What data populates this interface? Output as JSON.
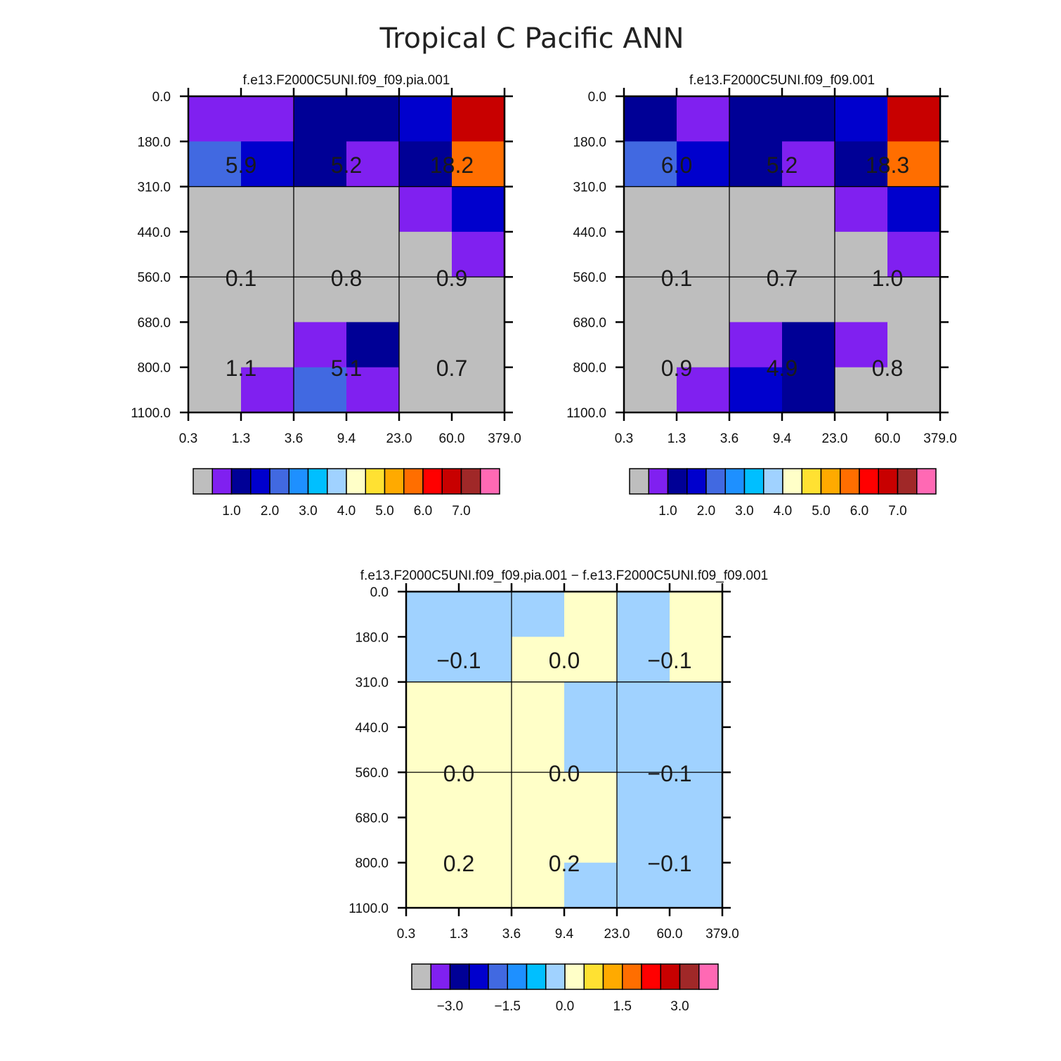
{
  "title": "Tropical C Pacific ANN",
  "color_table": {
    "colors": [
      "#bebebe",
      "#8020f0",
      "#000096",
      "#0000cd",
      "#4169e1",
      "#1e90ff",
      "#00bfff",
      "#a0d2ff",
      "#ffffc8",
      "#ffe132",
      "#ffaa00",
      "#ff6e00",
      "#ff0000",
      "#c80000",
      "#a02828",
      "#ff69b4"
    ]
  },
  "chart_data": [
    {
      "type": "heatmap",
      "id": "p1",
      "title": "f.e13.F2000C5UNI.f09_f09.pia.001",
      "x_ticks": [
        "0.3",
        "1.3",
        "3.6",
        "9.4",
        "23.0",
        "60.0",
        "379.0"
      ],
      "y_ticks": [
        "0.0",
        "180.0",
        "310.0",
        "440.0",
        "560.0",
        "680.0",
        "800.0",
        "1100.0"
      ],
      "cells": [
        [
          1,
          1,
          2,
          2,
          3,
          13
        ],
        [
          4,
          3,
          2,
          1,
          2,
          11
        ],
        [
          0,
          0,
          0,
          0,
          1,
          3
        ],
        [
          0,
          0,
          0,
          0,
          0,
          1
        ],
        [
          0,
          0,
          0,
          0,
          0,
          0
        ],
        [
          0,
          0,
          1,
          2,
          0,
          0
        ],
        [
          0,
          1,
          4,
          1,
          0,
          0
        ]
      ],
      "block_labels": [
        [
          "5.9",
          "5.2",
          "18.2"
        ],
        [
          "0.1",
          "0.8",
          "0.9"
        ],
        [
          "1.1",
          "5.1",
          "0.7"
        ]
      ],
      "colorbar_labels": [
        "1.0",
        "2.0",
        "3.0",
        "4.0",
        "5.0",
        "6.0",
        "7.0"
      ]
    },
    {
      "type": "heatmap",
      "id": "p2",
      "title": "f.e13.F2000C5UNI.f09_f09.001",
      "x_ticks": [
        "0.3",
        "1.3",
        "3.6",
        "9.4",
        "23.0",
        "60.0",
        "379.0"
      ],
      "y_ticks": [
        "0.0",
        "180.0",
        "310.0",
        "440.0",
        "560.0",
        "680.0",
        "800.0",
        "1100.0"
      ],
      "cells": [
        [
          2,
          1,
          2,
          2,
          3,
          13
        ],
        [
          4,
          3,
          2,
          1,
          2,
          11
        ],
        [
          0,
          0,
          0,
          0,
          1,
          3
        ],
        [
          0,
          0,
          0,
          0,
          0,
          1
        ],
        [
          0,
          0,
          0,
          0,
          0,
          0
        ],
        [
          0,
          0,
          1,
          2,
          1,
          0
        ],
        [
          0,
          1,
          3,
          2,
          0,
          0
        ]
      ],
      "block_labels": [
        [
          "6.0",
          "5.2",
          "18.3"
        ],
        [
          "0.1",
          "0.7",
          "1.0"
        ],
        [
          "0.9",
          "4.9",
          "0.8"
        ]
      ],
      "colorbar_labels": [
        "1.0",
        "2.0",
        "3.0",
        "4.0",
        "5.0",
        "6.0",
        "7.0"
      ]
    },
    {
      "type": "heatmap",
      "id": "p3",
      "title": "f.e13.F2000C5UNI.f09_f09.pia.001 − f.e13.F2000C5UNI.f09_f09.001",
      "x_ticks": [
        "0.3",
        "1.3",
        "3.6",
        "9.4",
        "23.0",
        "60.0",
        "379.0"
      ],
      "y_ticks": [
        "0.0",
        "180.0",
        "310.0",
        "440.0",
        "560.0",
        "680.0",
        "800.0",
        "1100.0"
      ],
      "cells": [
        [
          7,
          7,
          7,
          8,
          7,
          8
        ],
        [
          7,
          7,
          8,
          8,
          7,
          8
        ],
        [
          8,
          8,
          8,
          7,
          7,
          7
        ],
        [
          8,
          8,
          8,
          7,
          7,
          7
        ],
        [
          8,
          8,
          8,
          8,
          7,
          7
        ],
        [
          8,
          8,
          8,
          8,
          7,
          7
        ],
        [
          8,
          8,
          8,
          7,
          7,
          7
        ]
      ],
      "block_labels": [
        [
          "−0.1",
          "0.0",
          "−0.1"
        ],
        [
          "0.0",
          "0.0",
          "−0.1"
        ],
        [
          "0.2",
          "0.2",
          "−0.1"
        ]
      ],
      "colorbar_labels": [
        "−3.0",
        "−1.5",
        "0.0",
        "1.5",
        "3.0"
      ]
    }
  ]
}
